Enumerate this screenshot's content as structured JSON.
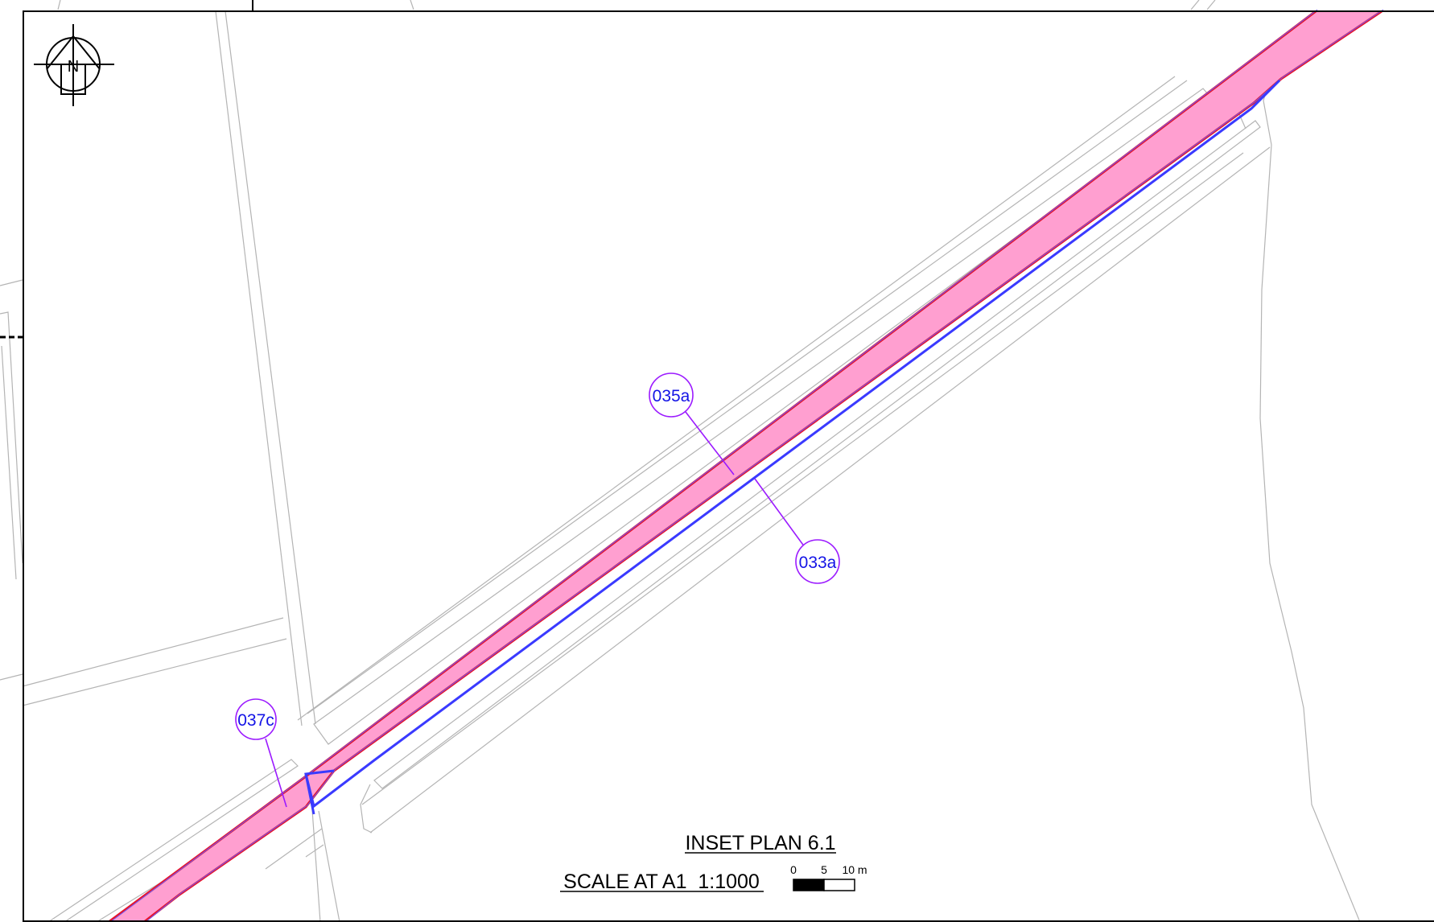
{
  "north_arrow": {
    "label": "N"
  },
  "parcels": [
    {
      "id": "035a"
    },
    {
      "id": "033a"
    },
    {
      "id": "037c"
    }
  ],
  "title": "INSET PLAN 6.1",
  "scale_text": "SCALE AT A1  1:1000",
  "scale_bar": {
    "ticks": [
      "0",
      "5",
      "10 m"
    ],
    "values_m": [
      0,
      5,
      10
    ]
  },
  "colors": {
    "corridor_fill": "#ff9fd0",
    "corridor_edge": "#e8142a",
    "boundary_blue": "#3a3aff",
    "label_circle": "#9b1aff",
    "label_text": "#1414e6",
    "feature_lines": "#b4b4b4",
    "frame": "#000000"
  }
}
